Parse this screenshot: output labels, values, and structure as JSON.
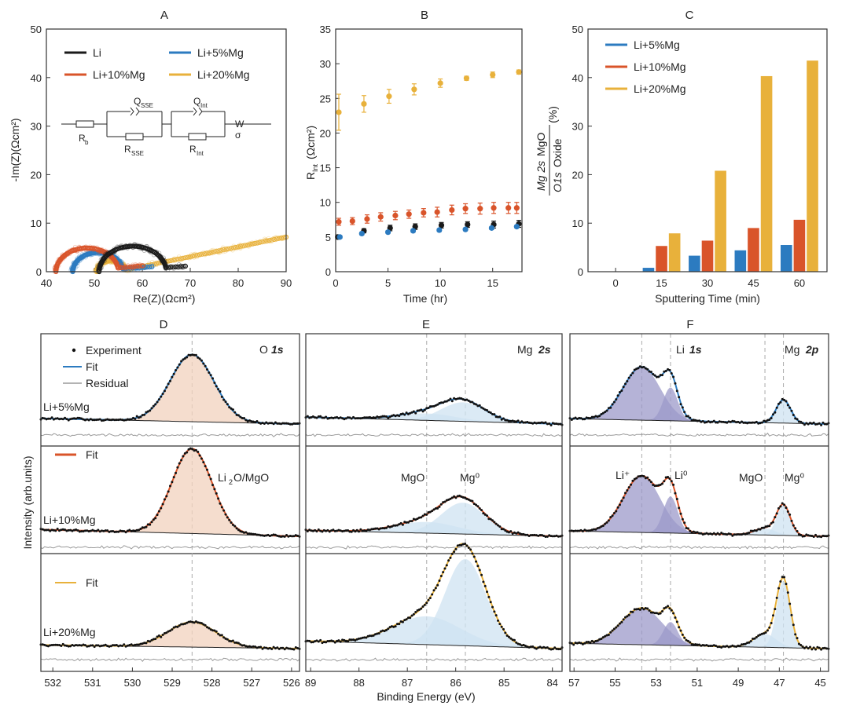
{
  "colors": {
    "li": "#1a1a1a",
    "mg5": "#2c7bc0",
    "mg10": "#d9542a",
    "mg20": "#e8b13b",
    "axis": "#333333",
    "fill_o1s": "#f2d2be",
    "fill_mg": "#cfe3f1",
    "fill_li": "#9c9ac9",
    "residual": "#9a9a9a",
    "dashed": "#aaaaaa"
  },
  "chart_data": [
    {
      "panel": "A",
      "type": "scatter",
      "title": "A",
      "xlabel": "Re(Z)(Ωcm²)",
      "ylabel": "-Im(Z)(Ωcm²)",
      "xlim": [
        40,
        90
      ],
      "ylim": [
        0,
        50
      ],
      "xticks": [
        40,
        50,
        60,
        70,
        80,
        90
      ],
      "yticks": [
        0,
        10,
        20,
        30,
        40,
        50
      ],
      "legend": [
        "Li",
        "Li+5%Mg",
        "Li+10%Mg",
        "Li+20%Mg"
      ],
      "circuit_labels": {
        "rb": "R",
        "rb_sub": "b",
        "qsse": "Q",
        "qsse_sub": "SSE",
        "rsse": "R",
        "rsse_sub": "SSE",
        "qint": "Q",
        "qint_sub": "Int",
        "rint": "R",
        "rint_sub": "Int",
        "w": "W",
        "sigma": "σ"
      },
      "series": [
        {
          "name": "Li",
          "color_key": "li",
          "r0": 51.0,
          "rct": 14.0,
          "warburg": 0.5,
          "xmax": 69
        },
        {
          "name": "Li+5%Mg",
          "color_key": "mg5",
          "r0": 45.5,
          "rct": 10.5,
          "warburg": 0.4,
          "xmax": 62
        },
        {
          "name": "Li+10%Mg",
          "color_key": "mg10",
          "r0": 42.0,
          "rct": 13.0,
          "warburg": 0.6,
          "xmax": 60
        },
        {
          "name": "Li+20%Mg",
          "color_key": "mg20",
          "r0": 50.5,
          "rct": 6.0,
          "warburg": 0.45,
          "xmax": 90
        }
      ]
    },
    {
      "panel": "B",
      "type": "scatter",
      "title": "B",
      "xlabel": "Time (hr)",
      "ylabel": "R",
      "ylabel_sub": "Int",
      "ylabel_unit": " (Ωcm²)",
      "xlim": [
        0,
        17.8
      ],
      "ylim": [
        0,
        35
      ],
      "xticks": [
        0,
        5,
        10,
        15
      ],
      "yticks": [
        0,
        5,
        10,
        15,
        20,
        25,
        30,
        35
      ],
      "series": [
        {
          "name": "Li",
          "color_key": "li",
          "x": [
            0.2,
            2.7,
            5.2,
            7.6,
            10.1,
            12.6,
            15.1,
            17.5
          ],
          "y": [
            5.0,
            5.9,
            6.3,
            6.5,
            6.7,
            6.8,
            6.8,
            6.9
          ],
          "err": [
            0.3,
            0.3,
            0.4,
            0.4,
            0.4,
            0.4,
            0.5,
            0.5
          ]
        },
        {
          "name": "Li+5%Mg",
          "color_key": "mg5",
          "x": [
            0.4,
            2.5,
            5.0,
            7.4,
            9.9,
            12.4,
            14.9,
            17.3
          ],
          "y": [
            5.0,
            5.5,
            5.7,
            5.9,
            6.0,
            6.1,
            6.3,
            6.5
          ],
          "err": [
            0.2,
            0.2,
            0.2,
            0.2,
            0.2,
            0.2,
            0.2,
            0.2
          ]
        },
        {
          "name": "Li+10%Mg",
          "color_key": "mg10",
          "x": [
            0.3,
            1.6,
            3.0,
            4.3,
            5.7,
            7.0,
            8.4,
            9.7,
            11.1,
            12.4,
            13.8,
            15.1,
            16.5,
            17.3
          ],
          "y": [
            7.2,
            7.3,
            7.6,
            7.9,
            8.1,
            8.3,
            8.5,
            8.6,
            8.9,
            9.1,
            9.1,
            9.2,
            9.2,
            9.2
          ],
          "err": [
            0.5,
            0.5,
            0.6,
            0.6,
            0.6,
            0.6,
            0.6,
            0.7,
            0.7,
            0.7,
            0.8,
            0.8,
            0.8,
            0.8
          ]
        },
        {
          "name": "Li+20%Mg",
          "color_key": "mg20",
          "x": [
            0.3,
            2.7,
            5.1,
            7.5,
            10.0,
            12.5,
            15.0,
            17.5
          ],
          "y": [
            23.0,
            24.2,
            25.3,
            26.3,
            27.2,
            27.9,
            28.4,
            28.8
          ],
          "err": [
            2.6,
            1.2,
            1.0,
            0.8,
            0.6,
            0.3,
            0.4,
            0.3
          ]
        }
      ]
    },
    {
      "panel": "C",
      "type": "bar",
      "title": "C",
      "xlabel": "Sputtering Time (min)",
      "ylabel_italic": "Mg 2s",
      "ylabel_mgo": "MgO",
      "ylabel_o1s": "O1s",
      "ylabel_oxide": "Oxide",
      "ylabel_pct": "(%)",
      "categories": [
        "0",
        "15",
        "30",
        "45",
        "60"
      ],
      "ylim": [
        0,
        50
      ],
      "yticks": [
        0,
        10,
        20,
        30,
        40,
        50
      ],
      "legend": [
        "Li+5%Mg",
        "Li+10%Mg",
        "Li+20%Mg"
      ],
      "series": [
        {
          "name": "Li+5%Mg",
          "color_key": "mg5",
          "values": [
            0,
            0.8,
            3.3,
            4.4,
            5.5
          ]
        },
        {
          "name": "Li+10%Mg",
          "color_key": "mg10",
          "values": [
            0,
            5.3,
            6.4,
            9.0,
            10.7
          ]
        },
        {
          "name": "Li+20%Mg",
          "color_key": "mg20",
          "values": [
            0,
            7.9,
            20.8,
            40.3,
            43.5
          ]
        }
      ]
    },
    {
      "panel": "D",
      "type": "line",
      "title": "D",
      "xlim": [
        532.3,
        525.8
      ],
      "xticks": [
        532,
        531,
        530,
        529,
        528,
        527,
        526
      ],
      "region_label": "O",
      "region_label_b": "1s",
      "dashed_at": [
        528.5
      ],
      "legend": [
        "Experiment",
        "Fit",
        "Residual"
      ],
      "fit_label": "Fit",
      "peak_label": "Li",
      "peak_label_sub": "2",
      "peak_label_rest": "O/MgO",
      "sample_labels": [
        "Li+5%Mg",
        "Li+10%Mg",
        "Li+20%Mg"
      ],
      "spectra": [
        {
          "sample": "Li+5%Mg",
          "fit_color_key": "mg5",
          "peaks": [
            {
              "center": 528.5,
              "width": 0.55,
              "height": 0.95
            }
          ]
        },
        {
          "sample": "Li+10%Mg",
          "fit_color_key": "mg10",
          "peaks": [
            {
              "center": 528.5,
              "width": 0.5,
              "height": 1.0
            }
          ]
        },
        {
          "sample": "Li+20%Mg",
          "fit_color_key": "mg20",
          "peaks": [
            {
              "center": 528.5,
              "width": 0.6,
              "height": 0.55
            }
          ]
        }
      ]
    },
    {
      "panel": "E",
      "type": "line",
      "title": "E",
      "xlim": [
        89.1,
        83.8
      ],
      "xticks": [
        89,
        88,
        87,
        86,
        85,
        84
      ],
      "xlabel": "Binding Energy (eV)",
      "region_label": "Mg",
      "region_label_b": "2s",
      "dashed_at": [
        86.6,
        85.8
      ],
      "peak_labels": [
        "MgO",
        "Mg⁰"
      ],
      "spectra": [
        {
          "sample": "Li+5%Mg",
          "fit_color_key": "mg5",
          "peaks": [
            {
              "center": 85.85,
              "width": 0.45,
              "height": 0.22
            },
            {
              "center": 86.6,
              "width": 0.6,
              "height": 0.08
            }
          ]
        },
        {
          "sample": "Li+10%Mg",
          "fit_color_key": "mg10",
          "peaks": [
            {
              "center": 85.85,
              "width": 0.45,
              "height": 0.42
            },
            {
              "center": 86.6,
              "width": 0.65,
              "height": 0.15
            }
          ]
        },
        {
          "sample": "Li+20%Mg",
          "fit_color_key": "mg20",
          "peaks": [
            {
              "center": 85.8,
              "width": 0.42,
              "height": 0.92
            },
            {
              "center": 86.6,
              "width": 0.7,
              "height": 0.3
            }
          ]
        }
      ]
    },
    {
      "panel": "F",
      "type": "line",
      "title": "F",
      "xlim": [
        57.2,
        44.6
      ],
      "xticks": [
        57,
        55,
        53,
        51,
        49,
        47,
        45
      ],
      "region_labels": [
        "Li",
        "1s",
        "Mg",
        "2p"
      ],
      "dashed_at": [
        53.7,
        52.3,
        47.7,
        46.8
      ],
      "peak_labels": [
        "Li⁺",
        "Li⁰",
        "MgO",
        "Mg⁰"
      ],
      "spectra": [
        {
          "sample": "Li+5%Mg",
          "fit_color_key": "mg5",
          "peaks": [
            {
              "center": 53.7,
              "width": 0.9,
              "height": 0.8
            },
            {
              "center": 52.3,
              "width": 0.35,
              "height": 0.5
            },
            {
              "center": 46.8,
              "width": 0.35,
              "height": 0.35
            }
          ]
        },
        {
          "sample": "Li+10%Mg",
          "fit_color_key": "mg10",
          "peaks": [
            {
              "center": 53.7,
              "width": 0.9,
              "height": 0.85
            },
            {
              "center": 52.3,
              "width": 0.35,
              "height": 0.55
            },
            {
              "center": 47.7,
              "width": 0.5,
              "height": 0.1
            },
            {
              "center": 46.8,
              "width": 0.33,
              "height": 0.45
            }
          ]
        },
        {
          "sample": "Li+20%Mg",
          "fit_color_key": "mg20",
          "peaks": [
            {
              "center": 53.7,
              "width": 1.0,
              "height": 0.55
            },
            {
              "center": 52.3,
              "width": 0.35,
              "height": 0.35
            },
            {
              "center": 47.7,
              "width": 0.55,
              "height": 0.2
            },
            {
              "center": 46.8,
              "width": 0.33,
              "height": 1.0
            }
          ]
        }
      ]
    }
  ],
  "shared": {
    "intensity_label": "Intensity (arb.units)"
  }
}
